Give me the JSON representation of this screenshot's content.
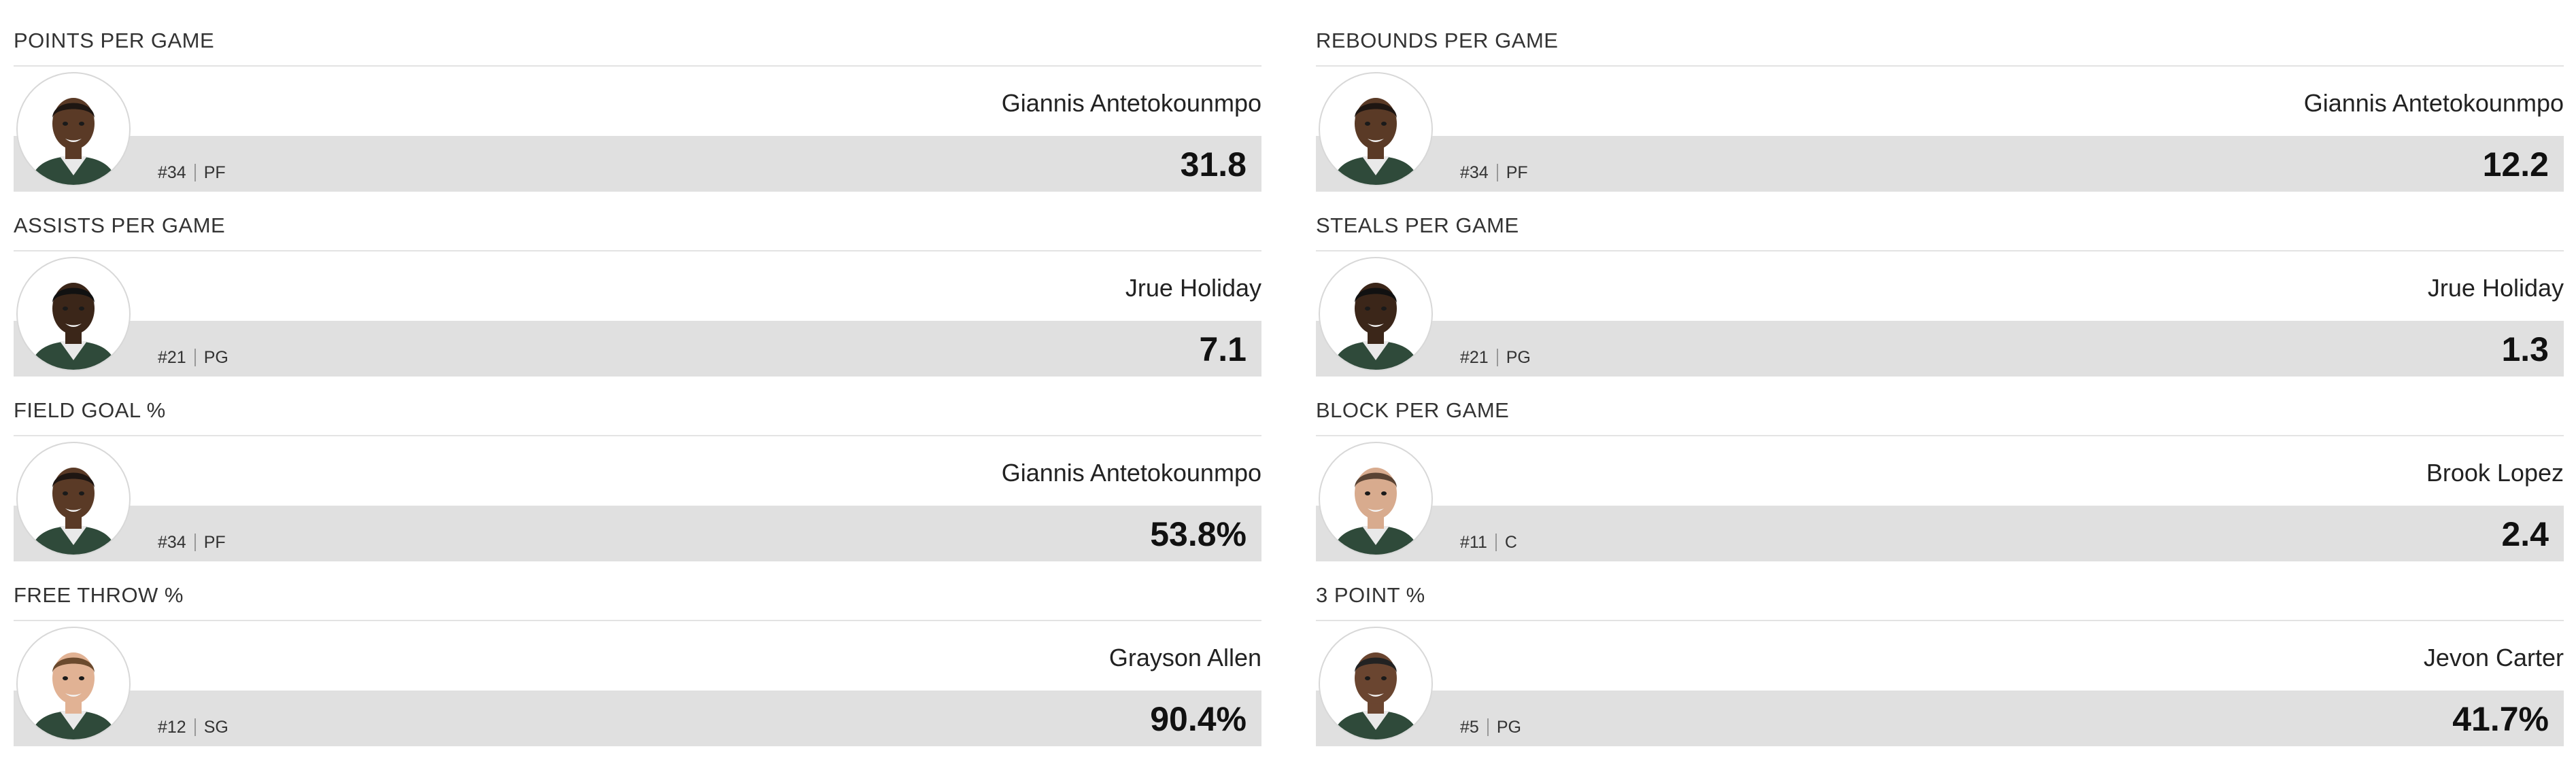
{
  "cards": [
    {
      "title": "POINTS PER GAME",
      "name": "Giannis Antetokounmpo",
      "number": "#34",
      "position": "PF",
      "value": "31.8",
      "skin": "#5a3a26",
      "hair": "#1e1612"
    },
    {
      "title": "REBOUNDS PER GAME",
      "name": "Giannis Antetokounmpo",
      "number": "#34",
      "position": "PF",
      "value": "12.2",
      "skin": "#5a3a26",
      "hair": "#1e1612"
    },
    {
      "title": "ASSISTS PER GAME",
      "name": "Jrue Holiday",
      "number": "#21",
      "position": "PG",
      "value": "7.1",
      "skin": "#3b2619",
      "hair": "#111111"
    },
    {
      "title": "STEALS PER GAME",
      "name": "Jrue Holiday",
      "number": "#21",
      "position": "PG",
      "value": "1.3",
      "skin": "#3b2619",
      "hair": "#111111"
    },
    {
      "title": "FIELD GOAL %",
      "name": "Giannis Antetokounmpo",
      "number": "#34",
      "position": "PF",
      "value": "53.8%",
      "skin": "#5a3a26",
      "hair": "#1e1612"
    },
    {
      "title": "BLOCK PER GAME",
      "name": "Brook Lopez",
      "number": "#11",
      "position": "C",
      "value": "2.4",
      "skin": "#d8ab8e",
      "hair": "#5a4333"
    },
    {
      "title": "FREE THROW %",
      "name": "Grayson Allen",
      "number": "#12",
      "position": "SG",
      "value": "90.4%",
      "skin": "#e1b294",
      "hair": "#6b4a2e"
    },
    {
      "title": "3 POINT %",
      "name": "Jevon Carter",
      "number": "#5",
      "position": "PG",
      "value": "41.7%",
      "skin": "#6a4530",
      "hair": "#222222"
    }
  ],
  "colors": {
    "band": "#e0e0e0",
    "jersey": "#2f4a3a",
    "divider": "#e3e3e3"
  }
}
